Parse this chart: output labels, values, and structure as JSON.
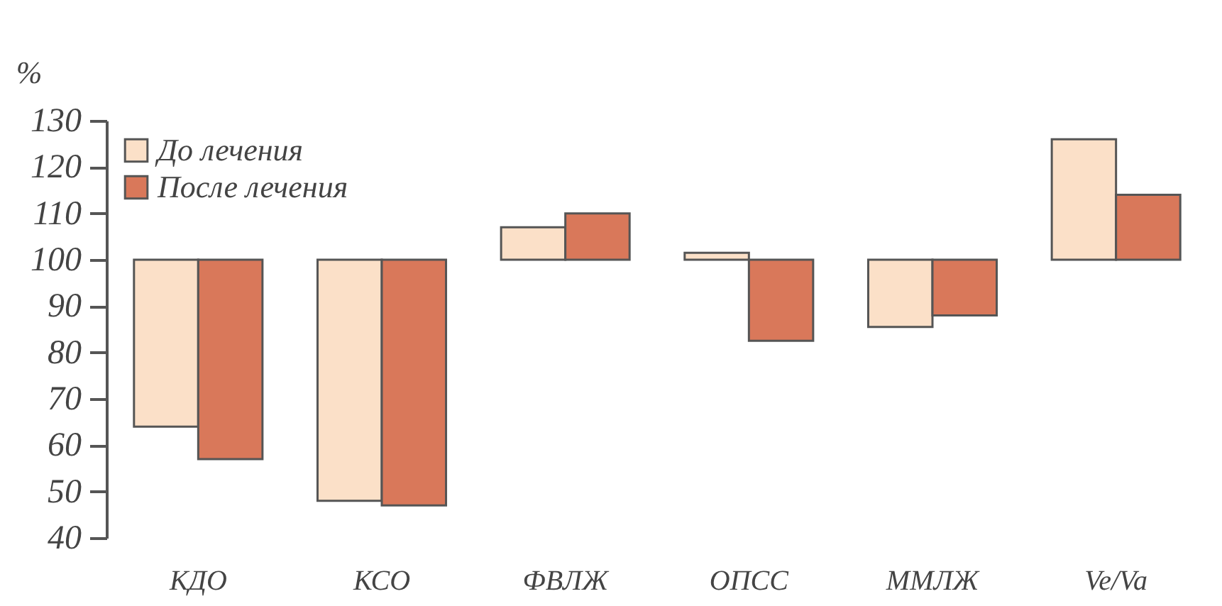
{
  "chart_data": {
    "type": "bar",
    "ylabel": "%",
    "categories": [
      "КДО",
      "КСО",
      "ФВЛЖ",
      "ОПСС",
      "ММЛЖ",
      "Ve/Va"
    ],
    "series": [
      {
        "name": "До лечения",
        "color": "#fbe0c8",
        "base": [
          100,
          100,
          100,
          100,
          100,
          100
        ],
        "values": [
          -36,
          -52,
          7,
          1.5,
          -14.5,
          26
        ]
      },
      {
        "name": "После лечения",
        "color": "#d9785a",
        "base": [
          100,
          100,
          100,
          100,
          100,
          100
        ],
        "values": [
          -43,
          -53,
          10,
          -17.5,
          -12,
          14
        ]
      }
    ],
    "ylim": [
      40,
      130
    ],
    "yticks": [
      40,
      50,
      60,
      70,
      80,
      90,
      100,
      110,
      120,
      130
    ],
    "grid": false,
    "legend": "top left"
  }
}
